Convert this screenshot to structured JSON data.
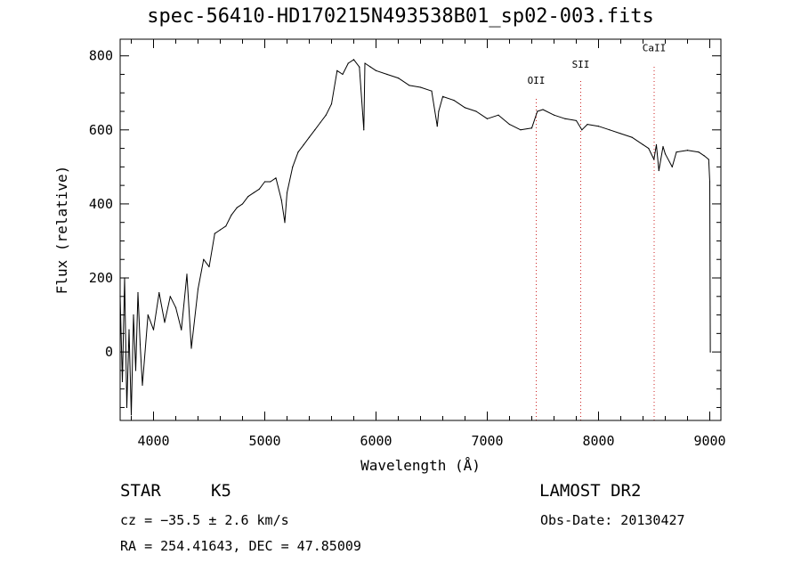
{
  "chart_data": {
    "type": "line",
    "title": "spec-56410-HD170215N493538B01_sp02-003.fits",
    "xlabel": "Wavelength (Å)",
    "ylabel": "Flux (relative)",
    "xlim": [
      3700,
      9100
    ],
    "ylim": [
      -185,
      845
    ],
    "xticks": [
      4000,
      5000,
      6000,
      7000,
      8000,
      9000
    ],
    "yticks": [
      0,
      200,
      400,
      600,
      800
    ],
    "line_color": "#000000",
    "marker_color": "#cc2222",
    "series": [
      {
        "x": [
          3700,
          3720,
          3740,
          3760,
          3780,
          3800,
          3820,
          3840,
          3860,
          3880,
          3900,
          3950,
          4000,
          4050,
          4100,
          4150,
          4200,
          4250,
          4300,
          4340,
          4400,
          4450,
          4500,
          4550,
          4600,
          4650,
          4700,
          4750,
          4800,
          4850,
          4900,
          4950,
          5000,
          5050,
          5100,
          5150,
          5180,
          5200,
          5250,
          5300,
          5350,
          5400,
          5450,
          5500,
          5550,
          5600,
          5650,
          5700,
          5750,
          5800,
          5850,
          5890,
          5900,
          5950,
          6000,
          6100,
          6200,
          6300,
          6400,
          6500,
          6550,
          6563,
          6600,
          6700,
          6800,
          6900,
          7000,
          7100,
          7200,
          7300,
          7400,
          7450,
          7500,
          7600,
          7700,
          7800,
          7850,
          7900,
          8000,
          8100,
          8200,
          8300,
          8400,
          8450,
          8498,
          8520,
          8542,
          8580,
          8600,
          8662,
          8700,
          8800,
          8900,
          8950,
          8990,
          9000,
          9005
        ],
        "y": [
          150,
          -80,
          200,
          -150,
          60,
          -170,
          100,
          -50,
          160,
          20,
          -90,
          100,
          60,
          160,
          80,
          150,
          120,
          60,
          210,
          10,
          170,
          250,
          230,
          320,
          330,
          340,
          370,
          390,
          400,
          420,
          430,
          440,
          460,
          460,
          470,
          410,
          350,
          430,
          500,
          540,
          560,
          580,
          600,
          620,
          640,
          670,
          760,
          750,
          780,
          790,
          770,
          600,
          780,
          770,
          760,
          750,
          740,
          720,
          715,
          705,
          610,
          650,
          690,
          680,
          660,
          650,
          630,
          640,
          615,
          600,
          605,
          650,
          655,
          640,
          630,
          625,
          600,
          615,
          610,
          600,
          590,
          580,
          560,
          550,
          520,
          560,
          490,
          555,
          535,
          500,
          540,
          545,
          540,
          530,
          520,
          460,
          0
        ]
      }
    ],
    "lines": [
      {
        "label": "OII",
        "x": 7440,
        "label_y": 725
      },
      {
        "label": "SII",
        "x": 7840,
        "label_y": 768
      },
      {
        "label": "CaII",
        "x": 8500,
        "label_y": 812
      }
    ],
    "grid": false
  },
  "info": {
    "object": "STAR",
    "subclass": "K5",
    "survey": "LAMOST DR2",
    "cz": "cz = −35.5 ± 2.6 km/s",
    "obsdate": "Obs-Date: 20130427",
    "coords": "RA = 254.41643, DEC =  47.85009"
  }
}
